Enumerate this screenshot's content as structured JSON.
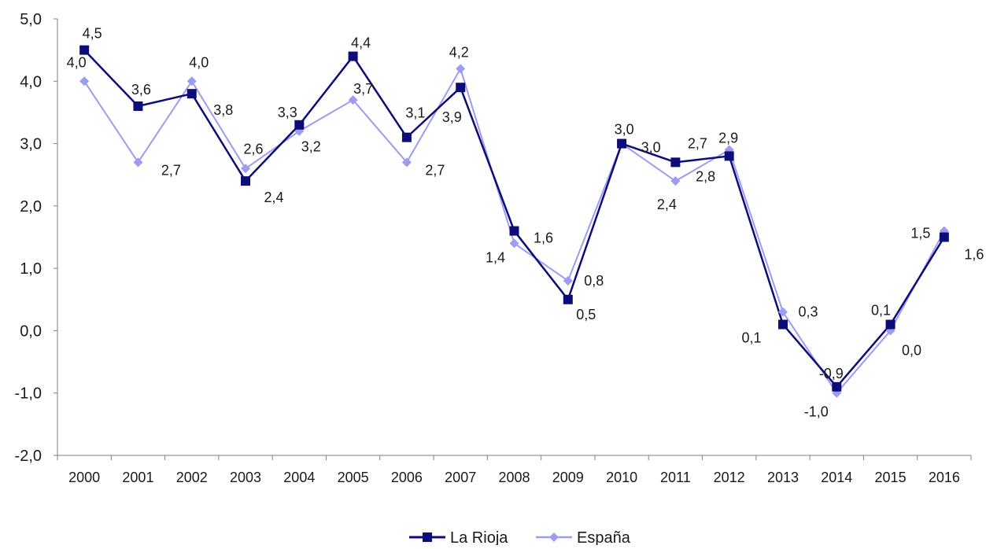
{
  "chart_data": {
    "type": "line",
    "title": "",
    "xlabel": "",
    "ylabel": "",
    "ylim": [
      -2.0,
      5.0
    ],
    "yticks": [
      "5,0",
      "4,0",
      "3,0",
      "2,0",
      "1,0",
      "0,0",
      "-1,0",
      "-2,0"
    ],
    "grid": false,
    "legend_position": "bottom",
    "categories": [
      "2000",
      "2001",
      "2002",
      "2003",
      "2004",
      "2005",
      "2006",
      "2007",
      "2008",
      "2009",
      "2010",
      "2011",
      "2012",
      "2013",
      "2014",
      "2015",
      "2016"
    ],
    "series": [
      {
        "name": "La Rioja",
        "color": "#0d0d7a",
        "marker": "square",
        "values": [
          4.5,
          3.6,
          3.8,
          2.4,
          3.3,
          4.4,
          3.1,
          3.9,
          1.6,
          0.5,
          3.0,
          2.7,
          2.8,
          0.1,
          -0.9,
          0.1,
          1.5
        ],
        "labels": [
          "4,5",
          "3,6",
          "3,8",
          "2,4",
          "3,3",
          "4,4",
          "3,1",
          "3,9",
          "1,6",
          "0,5",
          "3,0",
          "2,7",
          "2,8",
          "0,1",
          "-0,9",
          "0,1",
          "1,5"
        ]
      },
      {
        "name": "España",
        "color": "#9c9cf0",
        "marker": "diamond",
        "values": [
          4.0,
          2.7,
          4.0,
          2.6,
          3.2,
          3.7,
          2.7,
          4.2,
          1.4,
          0.8,
          3.0,
          2.4,
          2.9,
          0.3,
          -1.0,
          0.0,
          1.6
        ],
        "labels": [
          "4,0",
          "2,7",
          "4,0",
          "2,6",
          "3,2",
          "3,7",
          "2,7",
          "4,2",
          "1,4",
          "0,8",
          "3,0",
          "2,4",
          "2,9",
          "0,3",
          "-1,0",
          "0,0",
          "1,6"
        ]
      }
    ]
  }
}
